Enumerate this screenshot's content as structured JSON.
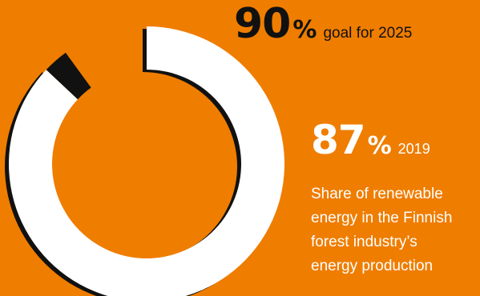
{
  "colors": {
    "background": "#ef7d00",
    "actual_arc": "#ffffff",
    "goal_arc": "#111111",
    "text_dark": "#111111",
    "text_light": "#ffffff"
  },
  "chart_data": {
    "type": "pie",
    "series": [
      {
        "name": "",
        "value": 87,
        "max": 100
      },
      {
        "name": "",
        "value": 90,
        "max": 100
      }
    ],
    "annotations": {
      "goal": {
        "number": "90",
        "percent": "%",
        "label": "goal for 2025"
      },
      "actual": {
        "number": "87",
        "percent": "%",
        "label": "2019"
      }
    },
    "description_lines": [
      "Share of renewable",
      "energy in the Finnish",
      "forest industry’s",
      "energy production"
    ]
  }
}
